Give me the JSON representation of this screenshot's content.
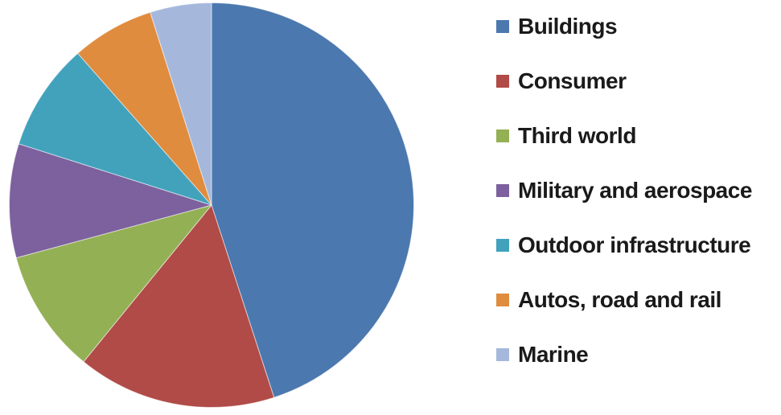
{
  "chart_data": {
    "type": "pie",
    "categories": [
      "Buildings",
      "Consumer",
      "Third world",
      "Military and aerospace",
      "Outdoor infrastructure",
      "Autos, road and rail",
      "Marine"
    ],
    "values": [
      45.0,
      15.9,
      9.9,
      9.1,
      8.6,
      6.6,
      4.9
    ],
    "unit": "percent-of-circle",
    "colors": [
      "#4B78AE",
      "#B04B47",
      "#93B055",
      "#7D619E",
      "#42A2BC",
      "#DF8C3F",
      "#A5B8DC"
    ],
    "title": "",
    "legend_position": "right",
    "start_angle_deg_from_top_clockwise": 0,
    "slice_separator_color": "#ffffff",
    "text_color": "#1a1a1a",
    "background_color": "#ffffff"
  }
}
